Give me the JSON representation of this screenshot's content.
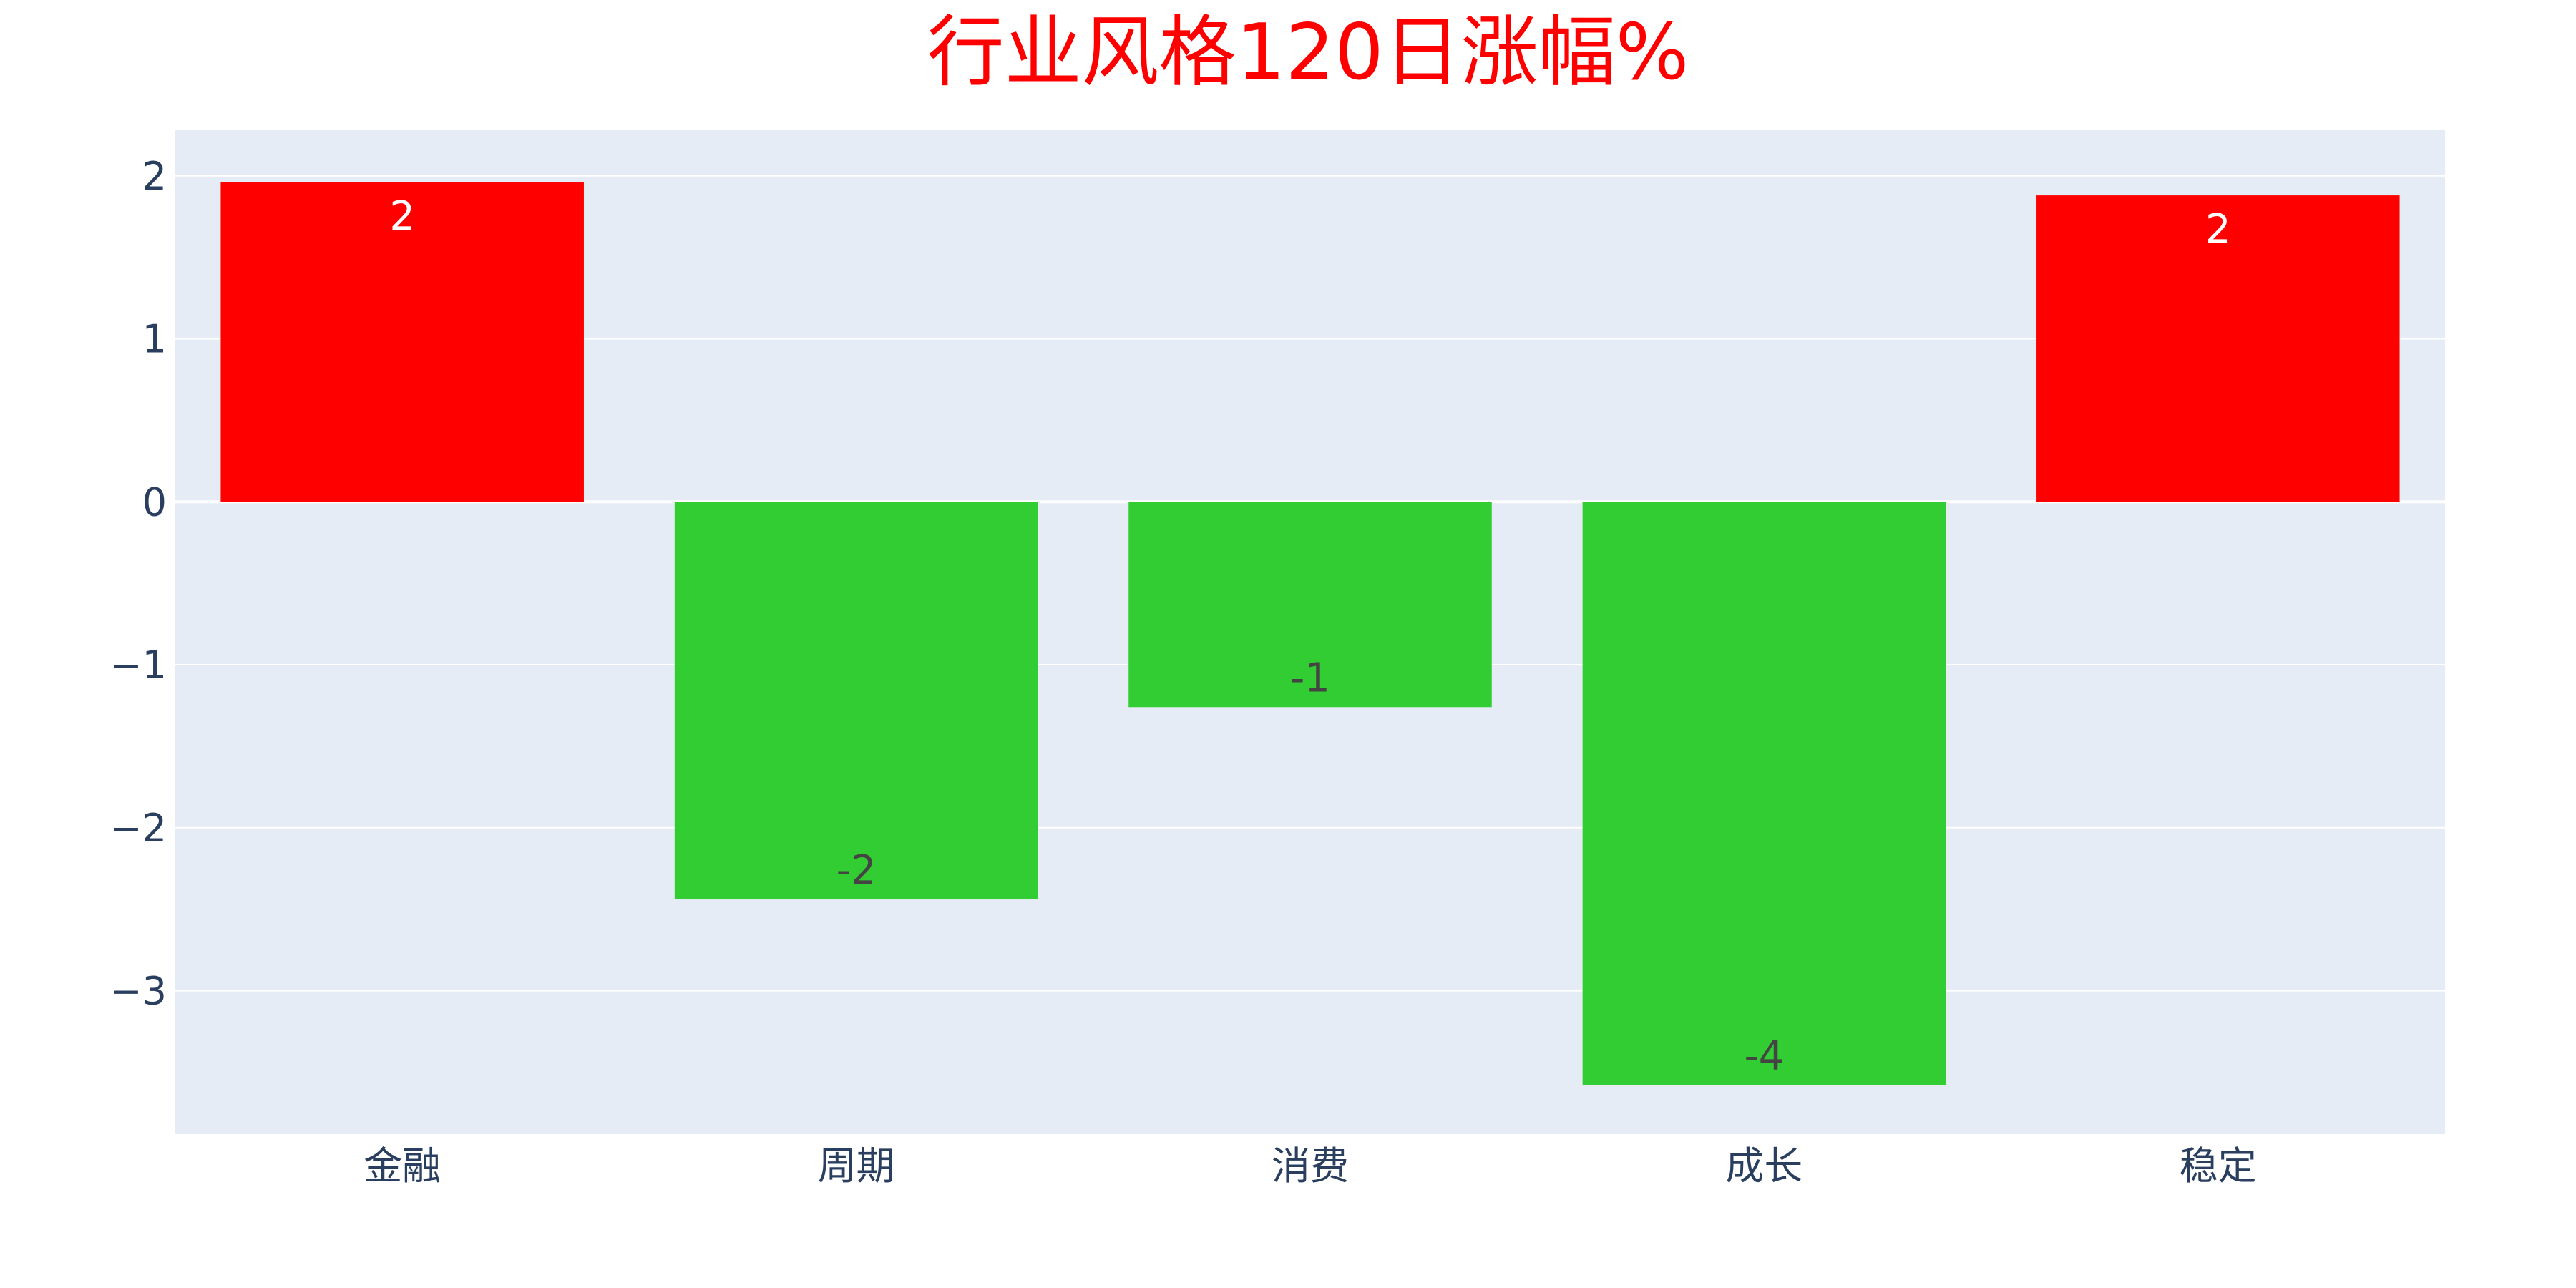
{
  "chart_data": {
    "type": "bar",
    "title": "行业风格120日涨幅%",
    "categories": [
      "金融",
      "周期",
      "消费",
      "成长",
      "稳定"
    ],
    "values": [
      1.96,
      -2.44,
      -1.26,
      -3.58,
      1.88
    ],
    "data_labels": [
      "2",
      "-2",
      "-1",
      "-4",
      "2"
    ],
    "xlabel": "",
    "ylabel": "",
    "ylim": [
      -3.88,
      2.28
    ],
    "yticks": [
      -3,
      -2,
      -1,
      0,
      1,
      2
    ],
    "ytick_labels": [
      "−3",
      "−2",
      "−1",
      "0",
      "1",
      "2"
    ],
    "grid": true,
    "legend": "none"
  },
  "colors": {
    "title": "#ff0000",
    "plot_background": "#e5ecf6",
    "gridline": "#ffffff",
    "positive_bar": "#ff0000",
    "negative_bar": "#32cd32",
    "tick_text": "#2a3f5f",
    "label_on_positive": "#ffffff",
    "label_on_negative": "#444444"
  }
}
